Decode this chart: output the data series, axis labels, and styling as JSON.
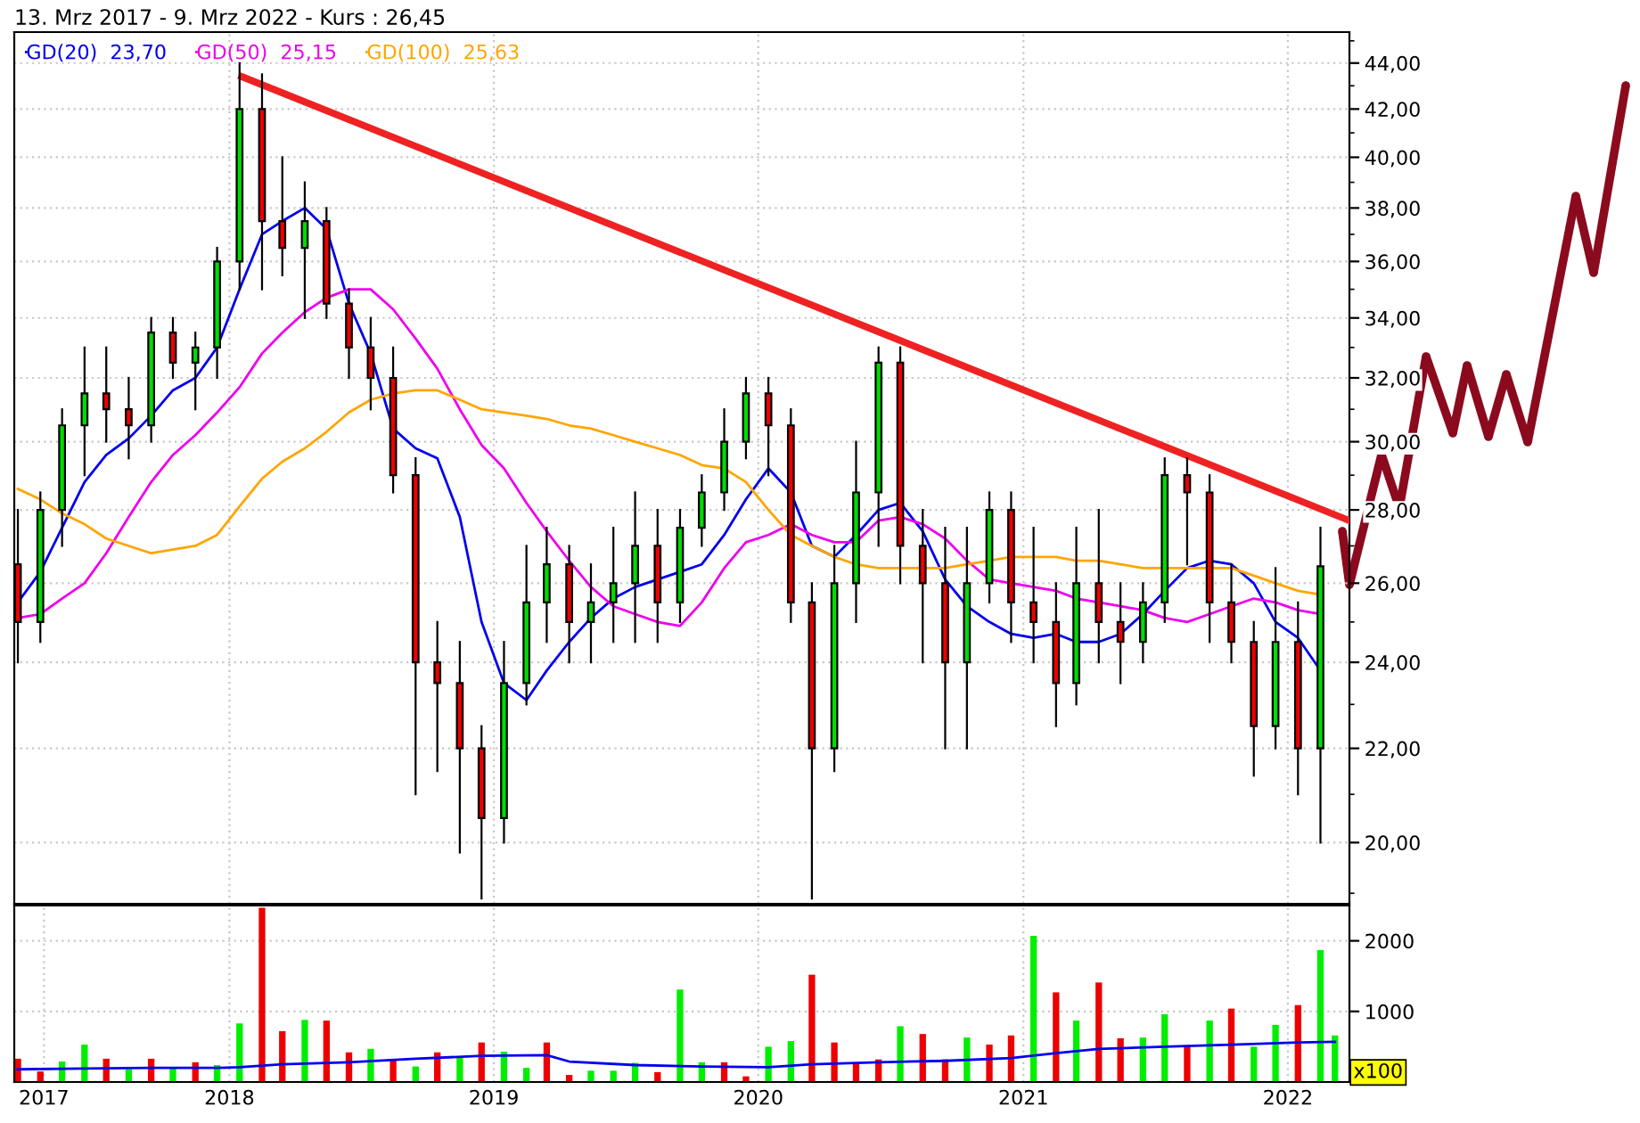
{
  "chart_data": [
    {
      "type": "candlestick",
      "title": "13. Mrz 2017 - 9. Mrz 2022 - Kurs : 26,45",
      "x": [
        "2017-03-15",
        "2017-04-15",
        "2017-05-15",
        "2017-06-15",
        "2017-07-15",
        "2017-08-15",
        "2017-09-15",
        "2017-10-15",
        "2017-11-15",
        "2017-12-15",
        "2018-01-15",
        "2018-02-15",
        "2018-03-15",
        "2018-04-15",
        "2018-05-15",
        "2018-06-15",
        "2018-07-15",
        "2018-08-15",
        "2018-09-15",
        "2018-10-15",
        "2018-11-15",
        "2018-12-15",
        "2019-01-15",
        "2019-02-15",
        "2019-03-15",
        "2019-04-15",
        "2019-05-15",
        "2019-06-15",
        "2019-07-15",
        "2019-08-15",
        "2019-09-15",
        "2019-10-15",
        "2019-11-15",
        "2019-12-15",
        "2020-01-15",
        "2020-02-15",
        "2020-03-15",
        "2020-04-15",
        "2020-05-15",
        "2020-06-15",
        "2020-07-15",
        "2020-08-15",
        "2020-09-15",
        "2020-10-15",
        "2020-11-15",
        "2020-12-15",
        "2021-01-15",
        "2021-02-15",
        "2021-03-15",
        "2021-04-15",
        "2021-05-15",
        "2021-06-15",
        "2021-07-15",
        "2021-08-15",
        "2021-09-15",
        "2021-10-15",
        "2021-11-15",
        "2021-12-15",
        "2022-01-15",
        "2022-02-15"
      ],
      "ohlc": [
        [
          26.5,
          28,
          24,
          25
        ],
        [
          25,
          28.5,
          24.5,
          28
        ],
        [
          28,
          31,
          27,
          30.5
        ],
        [
          30.5,
          33,
          29,
          31.5
        ],
        [
          31.5,
          33,
          30,
          31
        ],
        [
          31,
          32,
          29.5,
          30.5
        ],
        [
          30.5,
          34,
          30,
          33.5
        ],
        [
          33.5,
          34,
          32,
          32.5
        ],
        [
          32.5,
          33.5,
          31,
          33
        ],
        [
          33,
          36.5,
          32,
          36
        ],
        [
          36,
          44,
          35,
          42
        ],
        [
          42,
          43.5,
          35,
          37.5
        ],
        [
          37.5,
          40,
          35.5,
          36.5
        ],
        [
          36.5,
          39,
          34,
          37.5
        ],
        [
          37.5,
          38,
          34,
          34.5
        ],
        [
          34.5,
          35,
          32,
          33
        ],
        [
          33,
          34,
          31,
          32
        ],
        [
          32,
          33,
          28.5,
          29
        ],
        [
          29,
          29.5,
          21,
          24
        ],
        [
          24,
          25,
          21.5,
          23.5
        ],
        [
          23.5,
          24.5,
          19.8,
          22
        ],
        [
          22,
          22.5,
          18.9,
          20.5
        ],
        [
          20.5,
          24.5,
          20,
          23.5
        ],
        [
          23.5,
          27,
          23,
          25.5
        ],
        [
          25.5,
          27.5,
          24.5,
          26.5
        ],
        [
          26.5,
          27,
          24,
          25
        ],
        [
          25,
          26.5,
          24,
          25.5
        ],
        [
          25.5,
          27.5,
          24.5,
          26
        ],
        [
          26,
          28.5,
          24.5,
          27
        ],
        [
          27,
          28,
          24.5,
          25.5
        ],
        [
          25.5,
          28,
          25,
          27.5
        ],
        [
          27.5,
          29,
          27,
          28.5
        ],
        [
          28.5,
          31,
          28,
          30
        ],
        [
          30,
          32,
          29.5,
          31.5
        ],
        [
          31.5,
          32,
          29,
          30.5
        ],
        [
          30.5,
          31,
          25,
          25.5
        ],
        [
          25.5,
          26,
          18.9,
          22
        ],
        [
          22,
          27,
          21.5,
          26
        ],
        [
          26,
          30,
          25,
          28.5
        ],
        [
          28.5,
          33,
          27,
          32.5
        ],
        [
          32.5,
          33,
          26,
          27
        ],
        [
          27,
          28,
          24,
          26
        ],
        [
          26,
          27.5,
          22,
          24
        ],
        [
          24,
          27.5,
          22,
          26
        ],
        [
          26,
          28.5,
          25.5,
          28
        ],
        [
          28,
          28.5,
          24.5,
          25.5
        ],
        [
          25.5,
          27.5,
          24,
          25
        ],
        [
          25,
          26,
          22.5,
          23.5
        ],
        [
          23.5,
          27.5,
          23,
          26
        ],
        [
          26,
          28,
          24,
          25
        ],
        [
          25,
          26,
          23.5,
          24.5
        ],
        [
          24.5,
          26,
          24,
          25.5
        ],
        [
          25.5,
          29.5,
          25,
          29
        ],
        [
          29,
          29.5,
          26.5,
          28.5
        ],
        [
          28.5,
          29,
          24.5,
          25.5
        ],
        [
          25.5,
          26.5,
          24,
          24.5
        ],
        [
          24.5,
          25,
          21.4,
          22.5
        ],
        [
          22.5,
          26.4,
          22,
          24.5
        ],
        [
          24.5,
          25.5,
          21,
          22
        ],
        [
          22,
          27.5,
          20,
          26.45
        ]
      ],
      "colors": [
        "#ee0000",
        "#00dd00",
        "#00dd00",
        "#00dd00",
        "#ee0000",
        "#ee0000",
        "#00dd00",
        "#ee0000",
        "#00dd00",
        "#00dd00",
        "#00dd00",
        "#ee0000",
        "#ee0000",
        "#00dd00",
        "#ee0000",
        "#ee0000",
        "#ee0000",
        "#ee0000",
        "#ee0000",
        "#ee0000",
        "#ee0000",
        "#ee0000",
        "#00dd00",
        "#00dd00",
        "#00dd00",
        "#ee0000",
        "#00dd00",
        "#00dd00",
        "#00dd00",
        "#ee0000",
        "#00dd00",
        "#00dd00",
        "#00dd00",
        "#00dd00",
        "#ee0000",
        "#ee0000",
        "#ee0000",
        "#00dd00",
        "#00dd00",
        "#00dd00",
        "#ee0000",
        "#ee0000",
        "#ee0000",
        "#00dd00",
        "#00dd00",
        "#ee0000",
        "#ee0000",
        "#ee0000",
        "#00dd00",
        "#ee0000",
        "#ee0000",
        "#00dd00",
        "#00dd00",
        "#ee0000",
        "#ee0000",
        "#ee0000",
        "#ee0000",
        "#00dd00",
        "#ee0000",
        "#00dd00"
      ],
      "series": [
        {
          "type": "line",
          "name": "GD(20)  23,70",
          "color": "#0000ee",
          "values": [
            25.5,
            26.3,
            27.5,
            28.8,
            29.6,
            30.1,
            30.8,
            31.6,
            32.0,
            33.0,
            35.0,
            37.0,
            37.5,
            38.0,
            37.2,
            34.5,
            32.8,
            30.4,
            29.8,
            29.5,
            27.8,
            25.0,
            23.5,
            23.1,
            23.8,
            24.5,
            25.1,
            25.6,
            25.9,
            26.1,
            26.3,
            26.5,
            27.3,
            28.3,
            29.2,
            28.5,
            27.0,
            26.7,
            27.3,
            28.0,
            28.2,
            27.4,
            26.1,
            25.4,
            25.0,
            24.7,
            24.6,
            24.7,
            24.5,
            24.5,
            24.7,
            25.2,
            25.8,
            26.4,
            26.6,
            26.5,
            26.0,
            25.0,
            24.6,
            23.8
          ]
        },
        {
          "type": "line",
          "name": "GD(50)  25,15",
          "color": "#ee00ee",
          "values": [
            25.1,
            25.2,
            25.6,
            26.0,
            26.8,
            27.8,
            28.8,
            29.6,
            30.2,
            30.9,
            31.7,
            32.8,
            33.5,
            34.2,
            34.7,
            35.0,
            35.0,
            34.3,
            33.3,
            32.3,
            31.0,
            29.9,
            29.2,
            28.2,
            27.4,
            26.6,
            25.9,
            25.4,
            25.2,
            25.0,
            24.9,
            25.5,
            26.4,
            27.1,
            27.3,
            27.6,
            27.3,
            27.1,
            27.1,
            27.7,
            27.8,
            27.6,
            27.2,
            26.6,
            26.1,
            26.0,
            25.9,
            25.8,
            25.6,
            25.5,
            25.4,
            25.3,
            25.1,
            25.0,
            25.2,
            25.4,
            25.6,
            25.5,
            25.3,
            25.2
          ]
        },
        {
          "type": "line",
          "name": "GD(100)  25,63",
          "color": "#ffa500",
          "values": [
            28.6,
            28.3,
            27.9,
            27.6,
            27.2,
            27.0,
            26.8,
            26.9,
            27.0,
            27.3,
            28.1,
            28.9,
            29.4,
            29.8,
            30.3,
            30.9,
            31.3,
            31.5,
            31.6,
            31.6,
            31.3,
            31.0,
            30.9,
            30.8,
            30.7,
            30.5,
            30.4,
            30.2,
            30.0,
            29.8,
            29.6,
            29.3,
            29.2,
            28.8,
            28.0,
            27.3,
            27.0,
            26.7,
            26.5,
            26.4,
            26.4,
            26.4,
            26.4,
            26.5,
            26.6,
            26.7,
            26.7,
            26.7,
            26.6,
            26.6,
            26.5,
            26.4,
            26.4,
            26.4,
            26.4,
            26.4,
            26.2,
            26.0,
            25.8,
            25.7
          ]
        },
        {
          "type": "line",
          "color": "#ee2222",
          "x": [
            "2018-01-18",
            "2022-03-27"
          ],
          "values": [
            43.4,
            27.7
          ]
        }
      ],
      "log": true,
      "xlim": [
        "2017-03-10",
        "2022-03-27"
      ],
      "ylim": [
        18.8,
        45.4
      ],
      "xticks": [
        {
          "value": "2018-01-01",
          "label": null
        },
        {
          "value": "2019-01-01",
          "label": null
        },
        {
          "value": "2020-01-01",
          "label": null
        },
        {
          "value": "2021-01-01",
          "label": null
        },
        {
          "value": "2022-01-01",
          "label": null
        }
      ],
      "yticks": [
        {
          "value": 19,
          "label": null
        },
        {
          "value": 20,
          "label": "20,00"
        },
        {
          "value": 21,
          "label": null
        },
        {
          "value": 22,
          "label": "22,00"
        },
        {
          "value": 23,
          "label": null
        },
        {
          "value": 24,
          "label": "24,00"
        },
        {
          "value": 25,
          "label": null
        },
        {
          "value": 26,
          "label": "26,00"
        },
        {
          "value": 27,
          "label": null
        },
        {
          "value": 28,
          "label": "28,00"
        },
        {
          "value": 29,
          "label": null
        },
        {
          "value": 30,
          "label": "30,00"
        },
        {
          "value": 31,
          "label": null
        },
        {
          "value": 32,
          "label": "32,00"
        },
        {
          "value": 33,
          "label": null
        },
        {
          "value": 34,
          "label": "34,00"
        },
        {
          "value": 35,
          "label": null
        },
        {
          "value": 36,
          "label": "36,00"
        },
        {
          "value": 37,
          "label": null
        },
        {
          "value": 38,
          "label": "38,00"
        },
        {
          "value": 39,
          "label": null
        },
        {
          "value": 40,
          "label": "40,00"
        },
        {
          "value": 41,
          "label": null
        },
        {
          "value": 42,
          "label": "42,00"
        },
        {
          "value": 43,
          "label": null
        },
        {
          "value": 44,
          "label": "44,00"
        },
        {
          "value": 45,
          "label": null
        }
      ],
      "grid": true,
      "legend": "top left",
      "tick_labels": "y"
    },
    {
      "type": "bar",
      "x": [
        "2017-03-15",
        "2017-04-15",
        "2017-05-15",
        "2017-06-15",
        "2017-07-15",
        "2017-08-15",
        "2017-09-15",
        "2017-10-15",
        "2017-11-15",
        "2017-12-15",
        "2018-01-15",
        "2018-02-15",
        "2018-03-15",
        "2018-04-15",
        "2018-05-15",
        "2018-06-15",
        "2018-07-15",
        "2018-08-15",
        "2018-09-15",
        "2018-10-15",
        "2018-11-15",
        "2018-12-15",
        "2019-01-15",
        "2019-02-15",
        "2019-03-15",
        "2019-04-15",
        "2019-05-15",
        "2019-06-15",
        "2019-07-15",
        "2019-08-15",
        "2019-09-15",
        "2019-10-15",
        "2019-11-15",
        "2019-12-15",
        "2020-01-15",
        "2020-02-15",
        "2020-03-15",
        "2020-04-15",
        "2020-05-15",
        "2020-06-15",
        "2020-07-15",
        "2020-08-15",
        "2020-09-15",
        "2020-10-15",
        "2020-11-15",
        "2020-12-15",
        "2021-01-15",
        "2021-02-15",
        "2021-03-15",
        "2021-04-15",
        "2021-05-15",
        "2021-06-15",
        "2021-07-15",
        "2021-08-15",
        "2021-09-15",
        "2021-10-15",
        "2021-11-15",
        "2021-12-15",
        "2022-01-15",
        "2022-02-15",
        "2022-03-07"
      ],
      "series": [
        {
          "type": "bar",
          "values": [
            330,
            150,
            290,
            530,
            330,
            180,
            330,
            200,
            280,
            240,
            830,
            2470,
            720,
            880,
            870,
            420,
            470,
            310,
            220,
            420,
            350,
            560,
            430,
            200,
            560,
            100,
            160,
            160,
            270,
            140,
            1310,
            280,
            280,
            80,
            500,
            580,
            1520,
            560,
            270,
            320,
            790,
            680,
            320,
            630,
            530,
            660,
            2070,
            1270,
            870,
            1410,
            620,
            630,
            960,
            520,
            870,
            1040,
            500,
            810,
            1090,
            1870,
            660
          ],
          "colors": [
            "#ee0000",
            "#ee0000",
            "#00ee00",
            "#00ee00",
            "#ee0000",
            "#00ee00",
            "#ee0000",
            "#00ee00",
            "#ee0000",
            "#00ee00",
            "#00ee00",
            "#ee0000",
            "#ee0000",
            "#00ee00",
            "#ee0000",
            "#ee0000",
            "#00ee00",
            "#ee0000",
            "#00ee00",
            "#ee0000",
            "#00ee00",
            "#ee0000",
            "#00ee00",
            "#00ee00",
            "#ee0000",
            "#ee0000",
            "#00ee00",
            "#00ee00",
            "#00ee00",
            "#ee0000",
            "#00ee00",
            "#00ee00",
            "#ee0000",
            "#ee0000",
            "#00ee00",
            "#00ee00",
            "#ee0000",
            "#ee0000",
            "#ee0000",
            "#ee0000",
            "#00ee00",
            "#ee0000",
            "#ee0000",
            "#00ee00",
            "#ee0000",
            "#ee0000",
            "#00ee00",
            "#ee0000",
            "#00ee00",
            "#ee0000",
            "#ee0000",
            "#00ee00",
            "#00ee00",
            "#ee0000",
            "#00ee00",
            "#ee0000",
            "#00ee00",
            "#00ee00",
            "#ee0000",
            "#00ee00",
            "#00ee00"
          ]
        },
        {
          "type": "line",
          "color": "#0000ee",
          "x": [
            "2017-03-15",
            "2017-06-15",
            "2017-09-15",
            "2017-12-15",
            "2018-01-15",
            "2018-03-15",
            "2018-06-15",
            "2018-09-15",
            "2018-12-15",
            "2019-03-15",
            "2019-04-15",
            "2019-07-15",
            "2019-10-15",
            "2020-01-15",
            "2020-03-15",
            "2020-06-15",
            "2020-09-15",
            "2020-12-15",
            "2021-02-15",
            "2021-04-15",
            "2021-07-15",
            "2021-10-15",
            "2022-01-15",
            "2022-03-07"
          ],
          "values": [
            180,
            190,
            200,
            200,
            210,
            250,
            280,
            330,
            370,
            380,
            290,
            240,
            220,
            210,
            250,
            280,
            300,
            340,
            410,
            470,
            500,
            530,
            560,
            570
          ]
        }
      ],
      "xlim": [
        "2017-03-10",
        "2022-03-27"
      ],
      "ylim": [
        0,
        2500
      ],
      "yticks": [
        1000,
        2000
      ],
      "xticks": [
        {
          "value": "2017-04-20",
          "label": "2017"
        },
        {
          "value": "2018-01-01",
          "label": "2018"
        },
        {
          "value": "2019-01-01",
          "label": "2019"
        },
        {
          "value": "2020-01-01",
          "label": "2020"
        },
        {
          "value": "2021-01-01",
          "label": "2021"
        },
        {
          "value": "2022-01-01",
          "label": "2022"
        }
      ],
      "grid": true,
      "annotations": [
        "x100"
      ]
    }
  ]
}
